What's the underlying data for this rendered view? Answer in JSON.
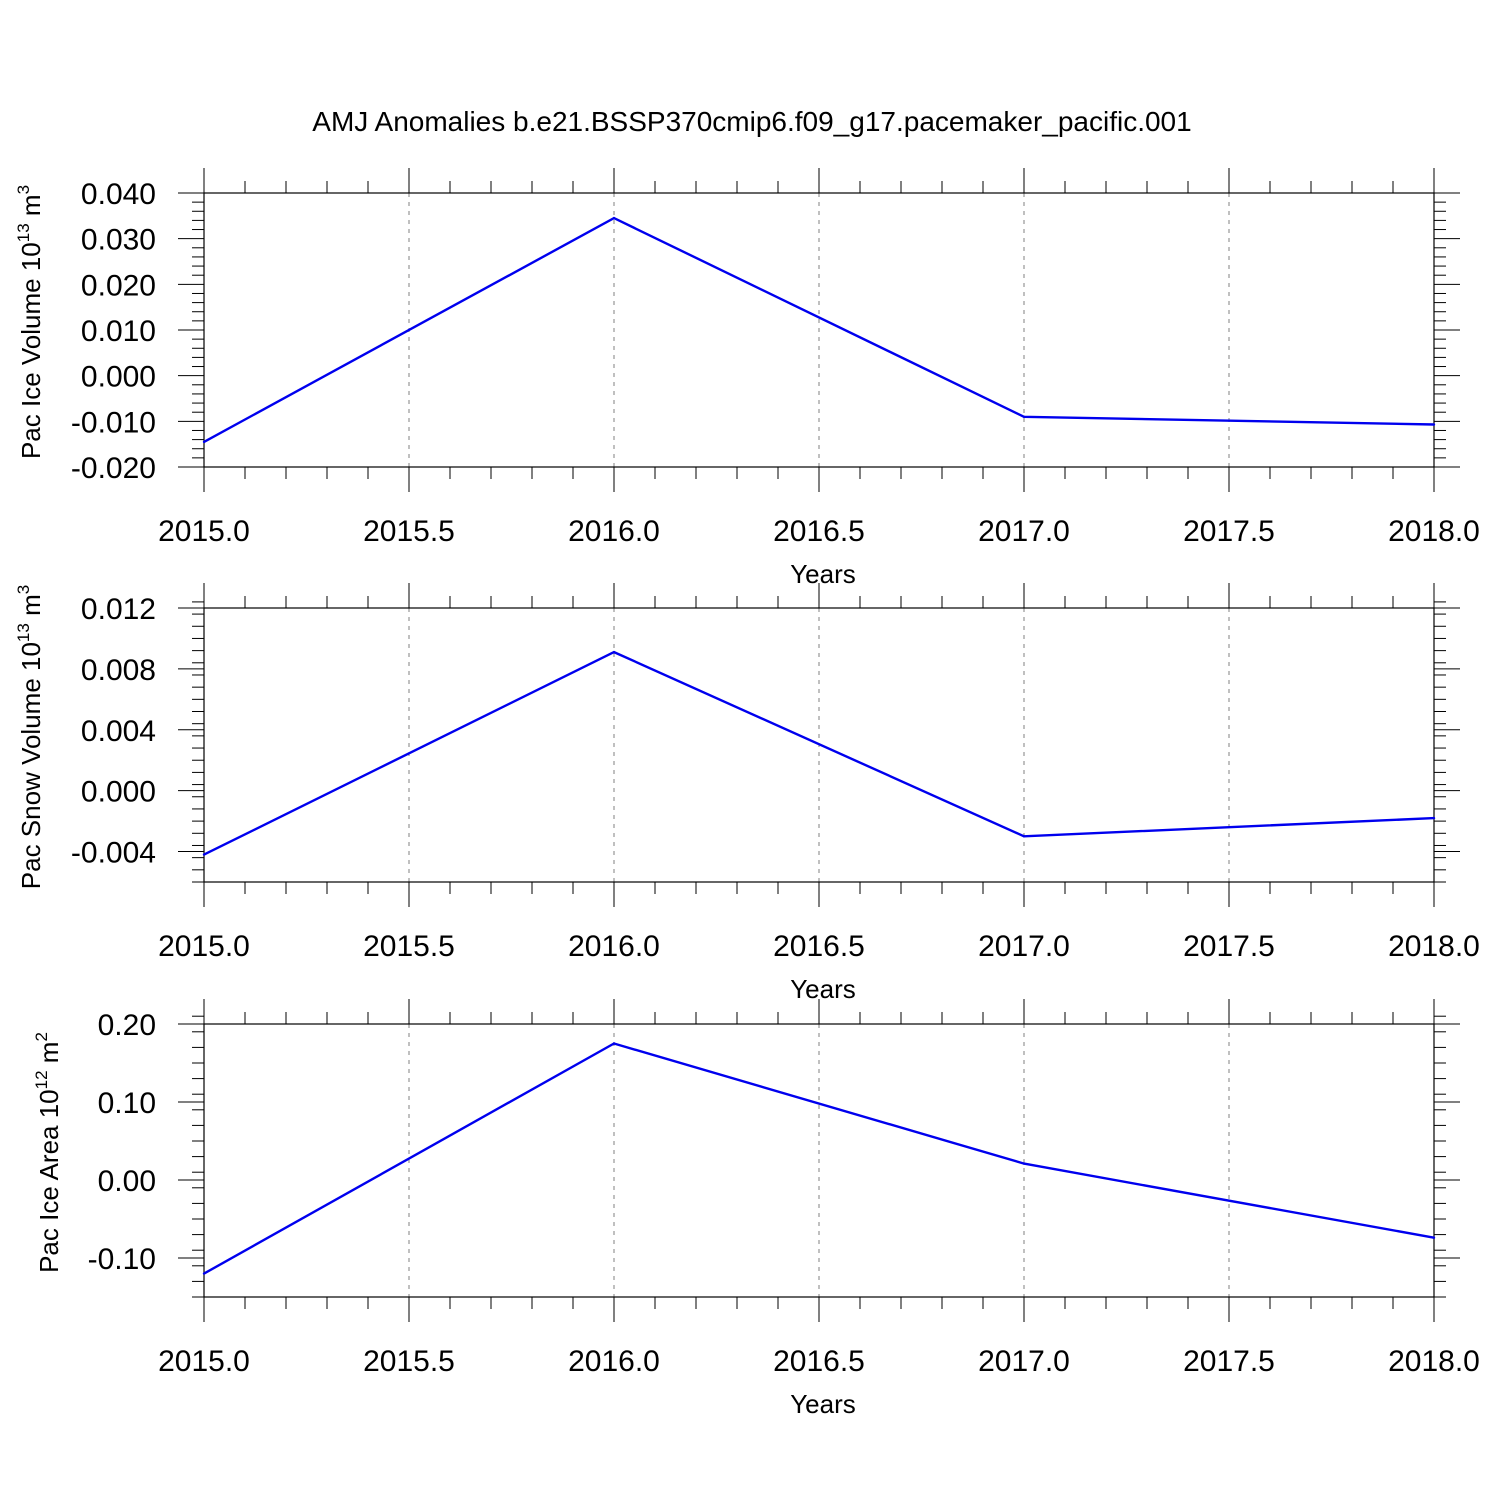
{
  "figure": {
    "title": "AMJ Anomalies b.e21.BSSP370cmip6.f09_g17.pacemaker_pacific.001"
  },
  "chart_data": [
    {
      "type": "line",
      "ylabel": {
        "text": "Pac Ice Volume 10",
        "exp": "13",
        "unit": " m",
        "unit_exp": "3"
      },
      "xlabel": "Years",
      "x": [
        2015,
        2016,
        2017,
        2018
      ],
      "series": [
        {
          "values": [
            -0.0145,
            0.0345,
            -0.009,
            -0.0107
          ],
          "color": "#0000ee"
        }
      ],
      "xlim": [
        2015,
        2018
      ],
      "ylim": [
        -0.02,
        0.04
      ],
      "yticks": [
        -0.02,
        -0.01,
        0.0,
        0.01,
        0.02,
        0.03,
        0.04
      ],
      "ytick_labels": [
        "-0.020",
        "-0.010",
        "0.000",
        "0.010",
        "0.020",
        "0.030",
        "0.040"
      ],
      "yminor_step": 0.002,
      "xticks": [
        2015,
        2015.5,
        2016,
        2016.5,
        2017,
        2017.5,
        2018
      ],
      "xtick_labels": [
        "2015.0",
        "2015.5",
        "2016.0",
        "2016.5",
        "2017.0",
        "2017.5",
        "2018.0"
      ],
      "grid": "vertical dashed at major x ticks"
    },
    {
      "type": "line",
      "ylabel": {
        "text": "Pac Snow Volume 10",
        "exp": "13",
        "unit": " m",
        "unit_exp": "3"
      },
      "xlabel": "Years",
      "x": [
        2015,
        2016,
        2017,
        2018
      ],
      "series": [
        {
          "values": [
            -0.0042,
            0.0091,
            -0.003,
            -0.0018
          ],
          "color": "#0000ee"
        }
      ],
      "xlim": [
        2015,
        2018
      ],
      "ylim": [
        -0.006,
        0.012
      ],
      "yticks": [
        -0.004,
        0.0,
        0.004,
        0.008,
        0.012
      ],
      "ytick_labels": [
        "-0.004",
        "0.000",
        "0.004",
        "0.008",
        "0.012"
      ],
      "yminor_step": 0.0008,
      "xticks": [
        2015,
        2015.5,
        2016,
        2016.5,
        2017,
        2017.5,
        2018
      ],
      "xtick_labels": [
        "2015.0",
        "2015.5",
        "2016.0",
        "2016.5",
        "2017.0",
        "2017.5",
        "2018.0"
      ],
      "grid": "vertical dashed at major x ticks"
    },
    {
      "type": "line",
      "ylabel": {
        "text": "Pac Ice Area 10",
        "exp": "12",
        "unit": " m",
        "unit_exp": "2"
      },
      "xlabel": "Years",
      "x": [
        2015,
        2016,
        2017,
        2018
      ],
      "series": [
        {
          "values": [
            -0.12,
            0.175,
            0.021,
            -0.074
          ],
          "color": "#0000ee"
        }
      ],
      "xlim": [
        2015,
        2018
      ],
      "ylim": [
        -0.15,
        0.2
      ],
      "yticks": [
        -0.1,
        0.0,
        0.1,
        0.2
      ],
      "ytick_labels": [
        "-0.10",
        "0.00",
        "0.10",
        "0.20"
      ],
      "yminor_step": 0.02,
      "xticks": [
        2015,
        2015.5,
        2016,
        2016.5,
        2017,
        2017.5,
        2018
      ],
      "xtick_labels": [
        "2015.0",
        "2015.5",
        "2016.0",
        "2016.5",
        "2017.0",
        "2017.5",
        "2018.0"
      ],
      "grid": "vertical dashed at major x ticks"
    }
  ]
}
